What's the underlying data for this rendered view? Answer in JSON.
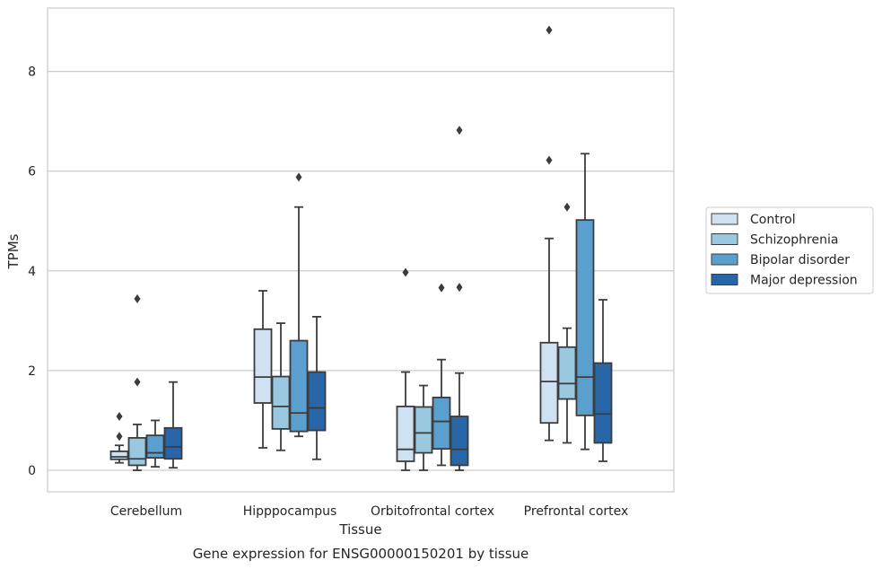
{
  "chart_data": {
    "type": "box",
    "xlabel": "Tissue",
    "ylabel": "TPMs",
    "caption": "Gene expression for ENSG00000150201 by tissue",
    "ylim": [
      -0.42,
      9.3
    ],
    "yticks": [
      0,
      2,
      4,
      6,
      8
    ],
    "grid": "horizontal",
    "legend_position": "right",
    "categories": [
      "Cerebellum",
      "Hipppocampus",
      "Orbitofrontal cortex",
      "Prefrontal cortex"
    ],
    "series": [
      {
        "name": "Control",
        "color": "#d0e1f2",
        "boxes": [
          {
            "whisker_low": 0.15,
            "q1": 0.22,
            "median": 0.27,
            "q3": 0.38,
            "whisker_high": 0.5,
            "outliers": [
              0.68,
              1.08
            ]
          },
          {
            "whisker_low": 0.45,
            "q1": 1.35,
            "median": 1.87,
            "q3": 2.83,
            "whisker_high": 3.6,
            "outliers": []
          },
          {
            "whisker_low": 0.0,
            "q1": 0.18,
            "median": 0.42,
            "q3": 1.28,
            "whisker_high": 1.97,
            "outliers": [
              3.97
            ]
          },
          {
            "whisker_low": 0.6,
            "q1": 0.95,
            "median": 1.78,
            "q3": 2.56,
            "whisker_high": 4.65,
            "outliers": [
              6.22,
              8.83
            ]
          }
        ]
      },
      {
        "name": "Schizophrenia",
        "color": "#9ac8e0",
        "boxes": [
          {
            "whisker_low": 0.0,
            "q1": 0.1,
            "median": 0.23,
            "q3": 0.65,
            "whisker_high": 0.92,
            "outliers": [
              1.77,
              3.44
            ]
          },
          {
            "whisker_low": 0.4,
            "q1": 0.83,
            "median": 1.28,
            "q3": 1.88,
            "whisker_high": 2.95,
            "outliers": []
          },
          {
            "whisker_low": 0.0,
            "q1": 0.35,
            "median": 0.75,
            "q3": 1.27,
            "whisker_high": 1.7,
            "outliers": []
          },
          {
            "whisker_low": 0.55,
            "q1": 1.43,
            "median": 1.74,
            "q3": 2.47,
            "whisker_high": 2.85,
            "outliers": [
              5.28
            ]
          }
        ]
      },
      {
        "name": "Bipolar disorder",
        "color": "#5a9fcd",
        "boxes": [
          {
            "whisker_low": 0.07,
            "q1": 0.25,
            "median": 0.35,
            "q3": 0.7,
            "whisker_high": 1.0,
            "outliers": []
          },
          {
            "whisker_low": 0.68,
            "q1": 0.78,
            "median": 1.15,
            "q3": 2.6,
            "whisker_high": 5.28,
            "outliers": [
              5.88
            ]
          },
          {
            "whisker_low": 0.1,
            "q1": 0.43,
            "median": 0.98,
            "q3": 1.46,
            "whisker_high": 2.22,
            "outliers": [
              3.66
            ]
          },
          {
            "whisker_low": 0.42,
            "q1": 1.1,
            "median": 1.87,
            "q3": 5.02,
            "whisker_high": 6.35,
            "outliers": []
          }
        ]
      },
      {
        "name": "Major depression",
        "color": "#2866a8",
        "boxes": [
          {
            "whisker_low": 0.05,
            "q1": 0.23,
            "median": 0.47,
            "q3": 0.85,
            "whisker_high": 1.77,
            "outliers": []
          },
          {
            "whisker_low": 0.22,
            "q1": 0.8,
            "median": 1.25,
            "q3": 1.97,
            "whisker_high": 3.08,
            "outliers": []
          },
          {
            "whisker_low": 0.0,
            "q1": 0.1,
            "median": 0.42,
            "q3": 1.08,
            "whisker_high": 1.95,
            "outliers": [
              3.67,
              6.82
            ]
          },
          {
            "whisker_low": 0.18,
            "q1": 0.55,
            "median": 1.13,
            "q3": 2.15,
            "whisker_high": 3.42,
            "outliers": []
          }
        ]
      }
    ]
  }
}
